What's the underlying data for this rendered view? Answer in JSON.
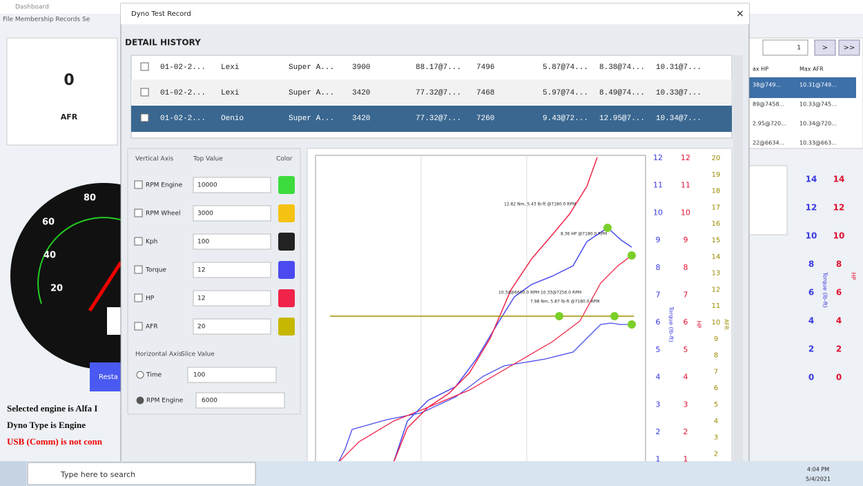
{
  "dashboard": {
    "title": "Dashboard",
    "menu": "File  Membership  Records  Se",
    "afr_value": "0",
    "afr_label": "AFR",
    "gauge_ticks": [
      "20",
      "40",
      "60",
      "80"
    ],
    "restart_button": "Resta",
    "status": [
      "Selected engine is Alfa I",
      "Dyno Type is Engine",
      "USB (Comm) is not conn"
    ],
    "page_field": "1",
    "nav_buttons": [
      ">",
      ">>"
    ],
    "table_headers": [
      "ax HP",
      "Max AFR"
    ],
    "table_rows": [
      [
        "38@749...",
        "10.31@749..."
      ],
      [
        "89@7458...",
        "10.33@745..."
      ],
      [
        "2.95@720...",
        "10.34@720..."
      ],
      [
        "22@6634...",
        "10.33@663..."
      ]
    ],
    "torque_ticks": [
      "14",
      "12",
      "10",
      "8",
      "6",
      "4",
      "2",
      "0"
    ],
    "hp_ticks": [
      "14",
      "12",
      "10",
      "8",
      "6",
      "4",
      "2",
      "0"
    ],
    "torque_label": "Torque (lb-ft)",
    "hp_label": "HP"
  },
  "dialog": {
    "title": "Dyno Test Record",
    "close": "×",
    "section": "DETAIL HISTORY",
    "history": [
      [
        "01-02-2...",
        "Lexi",
        "Super A...",
        "3900",
        "88.17@7...",
        "7496",
        "5.87@74...",
        "8.38@74...",
        "10.31@7..."
      ],
      [
        "01-02-2...",
        "Lexi",
        "Super A...",
        "3420",
        "77.32@7...",
        "7468",
        "5.97@74...",
        "8.49@74...",
        "10.33@7..."
      ],
      [
        "01-02-2...",
        "Oenio",
        "Super A...",
        "3420",
        "77.32@7...",
        "7260",
        "9.43@72...",
        "12.95@7...",
        "10.34@7..."
      ]
    ],
    "controls": {
      "headers": [
        "Vertical Axis",
        "Top Value",
        "Color"
      ],
      "rows": [
        {
          "label": "RPM Engine",
          "value": "10000",
          "color": "#3ddc3d"
        },
        {
          "label": "RPM Wheel",
          "value": "3000",
          "color": "#f5c211"
        },
        {
          "label": "Kph",
          "value": "100",
          "color": "#222222"
        },
        {
          "label": "Torque",
          "value": "12",
          "color": "#4a4af0"
        },
        {
          "label": "HP",
          "value": "12",
          "color": "#f0234a"
        },
        {
          "label": "AFR",
          "value": "20",
          "color": "#c6b800"
        }
      ],
      "horizontal_headers": [
        "Horizontal Axis",
        "Slice Value"
      ],
      "horizontal": [
        {
          "label": "Time",
          "value": "100"
        },
        {
          "label": "RPM Engine",
          "value": "6000"
        }
      ]
    },
    "chart": {
      "torque_ticks": [
        "12",
        "11",
        "10",
        "9",
        "8",
        "7",
        "6",
        "5",
        "4",
        "3",
        "2",
        "1"
      ],
      "hp_ticks": [
        "12",
        "11",
        "10",
        "9",
        "8",
        "7",
        "6",
        "5",
        "4",
        "3",
        "2",
        "1"
      ],
      "afr_ticks": [
        "20",
        "19",
        "18",
        "17",
        "16",
        "15",
        "14",
        "13",
        "12",
        "11",
        "10",
        "9",
        "8",
        "7",
        "6",
        "5",
        "4",
        "3",
        "2"
      ],
      "torque_label": "Torque (lb-ft)",
      "hp_label": "HP",
      "afr_label": "AFR",
      "annotations": [
        "12.82 Nm, 5.43 lb-ft @7180.0 RPM",
        "8.36 HP @7180.0 RPM",
        "10.34@6600.0 RPM 10.33@7256.0 RPM",
        "7.98 Nm, 5.87 lb-ft @7180.0 RPM"
      ]
    }
  },
  "taskbar": {
    "search": "Type here to search",
    "time": "4:04 PM",
    "date": "5/4/2021"
  }
}
